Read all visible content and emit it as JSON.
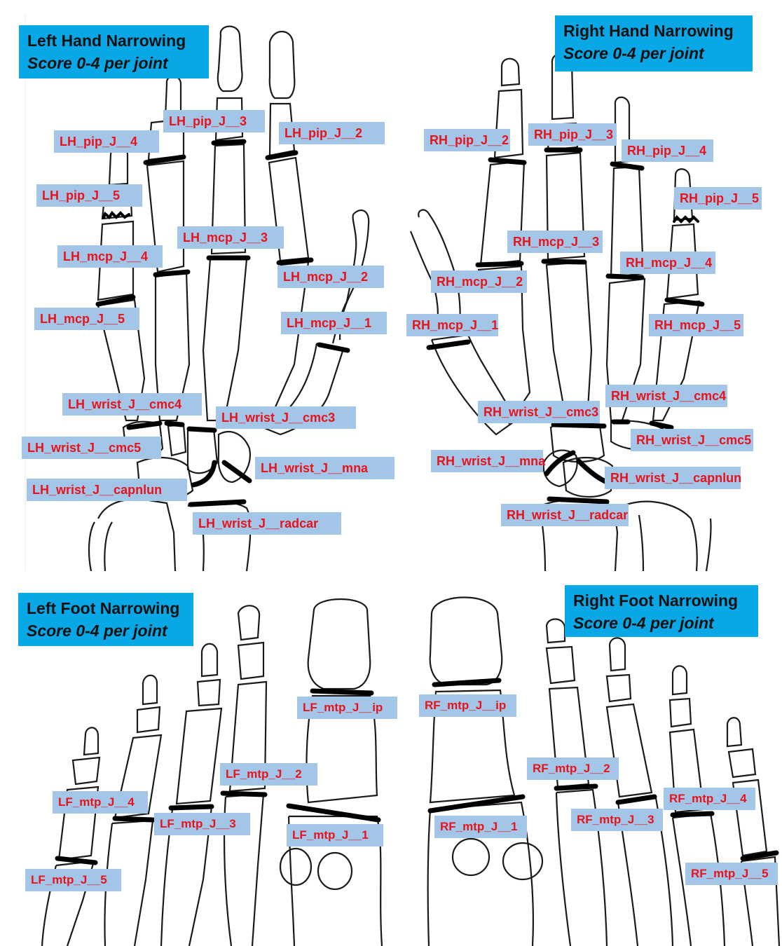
{
  "panels": {
    "left_hand": {
      "title": "Left Hand Narrowing",
      "subtitle": "Score 0-4 per joint"
    },
    "right_hand": {
      "title": "Right Hand Narrowing",
      "subtitle": "Score 0-4 per joint"
    },
    "left_foot": {
      "title": "Left Foot Narrowing",
      "subtitle": "Score 0-4 per joint"
    },
    "right_foot": {
      "title": "Right Foot Narrowing",
      "subtitle": "Score 0-4 per joint"
    }
  },
  "labels": {
    "lh_pip_4": "LH_pip_J__4",
    "lh_pip_3": "LH_pip_J__3",
    "lh_pip_2": "LH_pip_J__2",
    "lh_pip_5": "LH_pip_J__5",
    "lh_mcp_3": "LH_mcp_J__3",
    "lh_mcp_4": "LH_mcp_J__4",
    "lh_mcp_2": "LH_mcp_J__2",
    "lh_mcp_5": "LH_mcp_J__5",
    "lh_mcp_1": "LH_mcp_J__1",
    "lh_wrist_cmc4": "LH_wrist_J__cmc4",
    "lh_wrist_cmc3": "LH_wrist_J__cmc3",
    "lh_wrist_cmc5": "LH_wrist_J__cmc5",
    "lh_wrist_mna": "LH_wrist_J__mna",
    "lh_wrist_capnlun": "LH_wrist_J__capnlun",
    "lh_wrist_radcar": "LH_wrist_J__radcar",
    "rh_pip_2": "RH_pip_J__2",
    "rh_pip_3": "RH_pip_J__3",
    "rh_pip_4": "RH_pip_J__4",
    "rh_pip_5": "RH_pip_J__5",
    "rh_mcp_3": "RH_mcp_J__3",
    "rh_mcp_4": "RH_mcp_J__4",
    "rh_mcp_2": "RH_mcp_J__2",
    "rh_mcp_1": "RH_mcp_J__1",
    "rh_mcp_5": "RH_mcp_J__5",
    "rh_wrist_cmc4": "RH_wrist_J__cmc4",
    "rh_wrist_cmc3": "RH_wrist_J__cmc3",
    "rh_wrist_cmc5": "RH_wrist_J__cmc5",
    "rh_wrist_mna": "RH_wrist_J__mna",
    "rh_wrist_capnlun": "RH_wrist_J__capnlun",
    "rh_wrist_radcar": "RH_wrist_J__radcar",
    "lf_mtp_ip": "LF_mtp_J__ip",
    "lf_mtp_2": "LF_mtp_J__2",
    "lf_mtp_4": "LF_mtp_J__4",
    "lf_mtp_3": "LF_mtp_J__3",
    "lf_mtp_1": "LF_mtp_J__1",
    "lf_mtp_5": "LF_mtp_J__5",
    "rf_mtp_ip": "RF_mtp_J__ip",
    "rf_mtp_2": "RF_mtp_J__2",
    "rf_mtp_4": "RF_mtp_J__4",
    "rf_mtp_3": "RF_mtp_J__3",
    "rf_mtp_1": "RF_mtp_J__1",
    "rf_mtp_5": "RF_mtp_J__5"
  },
  "colors": {
    "title_bg": "#0aa7e6",
    "label_bg": "#a3c6e8",
    "label_text": "#e8131b"
  }
}
